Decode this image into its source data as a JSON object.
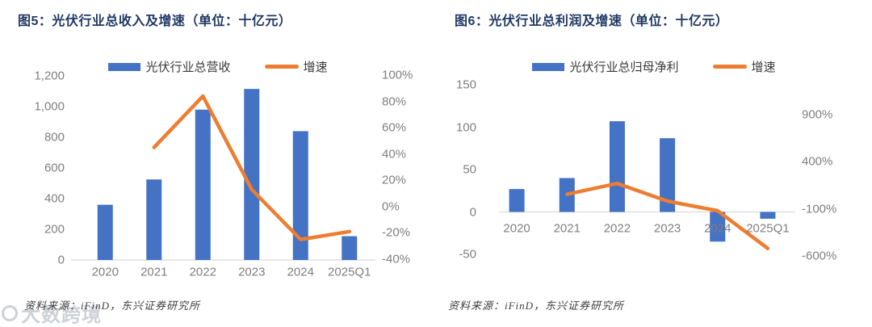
{
  "watermark": {
    "text": "大数跨境"
  },
  "figures": [
    {
      "id": "fig5",
      "title": "图5：光伏行业总收入及增速（单位：十亿元）",
      "legend": {
        "bar_label": "光伏行业总营收",
        "line_label": "增速"
      },
      "source": "资料来源：iFinD，东兴证券研究所",
      "colors": {
        "bar": "#4472C4",
        "line": "#ED7D31",
        "axis_line": "#D9D9D9",
        "tick_text": "#7F7F7F",
        "title_text": "#1F3864"
      },
      "chart_data": {
        "type": "bar",
        "categories": [
          "2020",
          "2021",
          "2022",
          "2023",
          "2024",
          "2025Q1"
        ],
        "series": [
          {
            "name": "光伏行业总营收",
            "type": "bar",
            "axis": "left",
            "values": [
              360,
              525,
              980,
              1115,
              840,
              155
            ]
          },
          {
            "name": "增速",
            "type": "line",
            "axis": "right",
            "values": [
              null,
              45,
              84,
              13,
              -25,
              -19
            ]
          }
        ],
        "left_axis": {
          "min": 0,
          "max": 1200,
          "ticks": [
            {
              "value": 1200,
              "label": "1,200"
            },
            {
              "value": 1000,
              "label": "1,000"
            },
            {
              "value": 800,
              "label": "800"
            },
            {
              "value": 600,
              "label": "600"
            },
            {
              "value": 400,
              "label": "400"
            },
            {
              "value": 200,
              "label": "200"
            },
            {
              "value": 0,
              "label": "0"
            }
          ]
        },
        "right_axis": {
          "min": -40,
          "max": 100,
          "ticks": [
            {
              "value": 100,
              "label": "100%"
            },
            {
              "value": 80,
              "label": "80%"
            },
            {
              "value": 60,
              "label": "60%"
            },
            {
              "value": 40,
              "label": "40%"
            },
            {
              "value": 20,
              "label": "20%"
            },
            {
              "value": 0,
              "label": "0%"
            },
            {
              "value": -20,
              "label": "-20%"
            },
            {
              "value": -40,
              "label": "-40%"
            }
          ]
        },
        "grid": false,
        "legend_position": "top"
      }
    },
    {
      "id": "fig6",
      "title": "图6：光伏行业总利润及增速（单位：十亿元）",
      "legend": {
        "bar_label": "光伏行业总归母净利",
        "line_label": "增速"
      },
      "source": "资料来源：iFinD，东兴证券研究所",
      "colors": {
        "bar": "#4472C4",
        "line": "#ED7D31",
        "axis_line": "#D9D9D9",
        "tick_text": "#7F7F7F",
        "title_text": "#1F3864"
      },
      "chart_data": {
        "type": "bar",
        "categories": [
          "2020",
          "2021",
          "2022",
          "2023",
          "2024",
          "2025Q1"
        ],
        "series": [
          {
            "name": "光伏行业总归母净利",
            "type": "bar",
            "axis": "left",
            "values": [
              27,
              40,
              107,
              87,
              -35,
              -8
            ]
          },
          {
            "name": "增速",
            "type": "line",
            "axis": "right",
            "values": [
              null,
              55,
              170,
              -18,
              -120,
              -520
            ]
          }
        ],
        "left_axis": {
          "min": -50,
          "max": 150,
          "ticks": [
            {
              "value": 150,
              "label": "150"
            },
            {
              "value": 100,
              "label": "100"
            },
            {
              "value": 50,
              "label": "50"
            },
            {
              "value": 0,
              "label": "0"
            },
            {
              "value": -50,
              "label": "-50"
            }
          ]
        },
        "right_axis": {
          "min": -600,
          "max": 900,
          "ticks": [
            {
              "value": 900,
              "label": "900%"
            },
            {
              "value": 400,
              "label": "400%"
            },
            {
              "value": -100,
              "label": "-100%"
            },
            {
              "value": -600,
              "label": "-600%"
            }
          ]
        },
        "grid": false,
        "legend_position": "top"
      }
    }
  ]
}
